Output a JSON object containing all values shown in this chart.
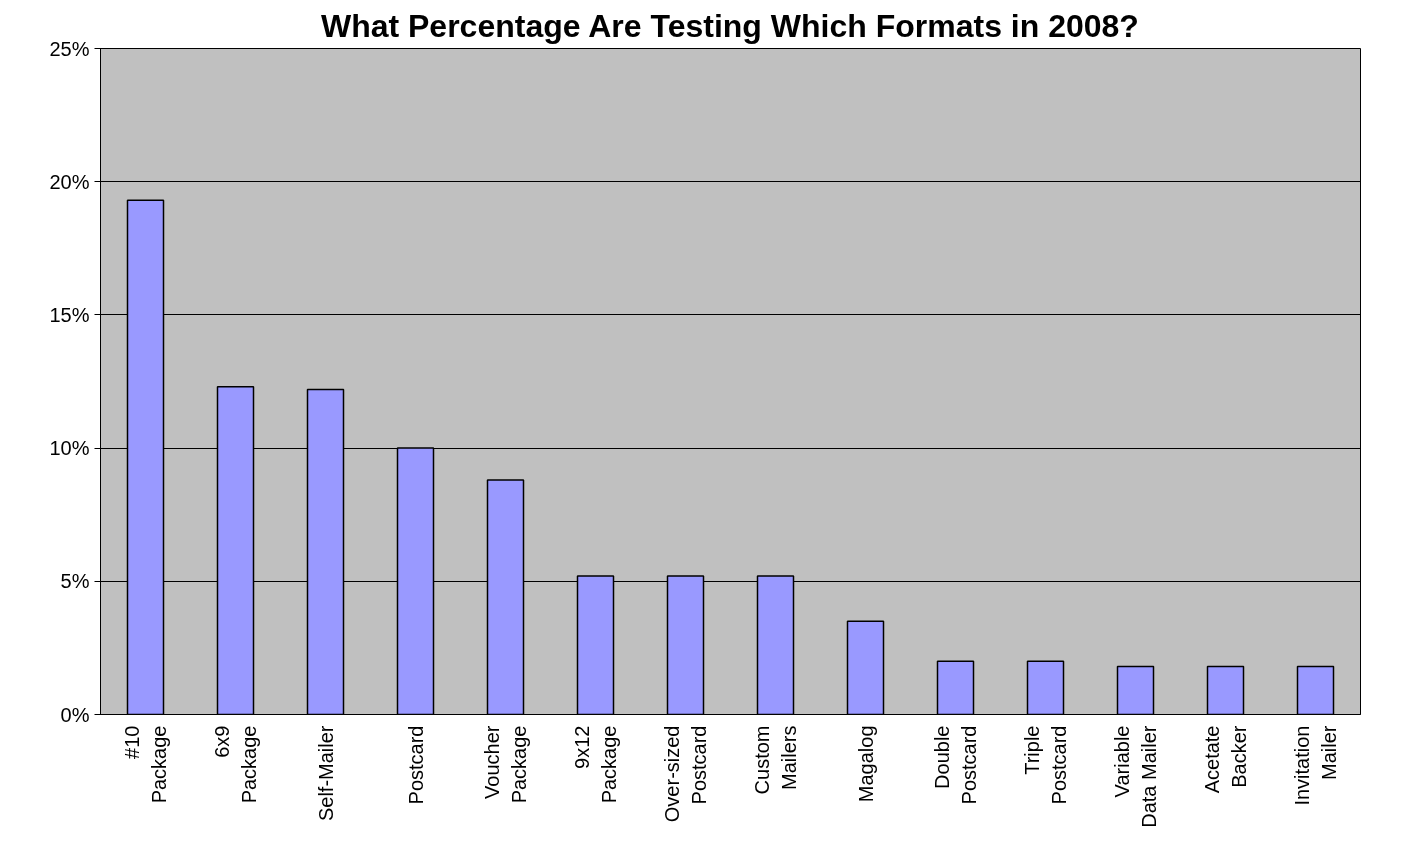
{
  "chart_data": {
    "type": "bar",
    "title": "What Percentage Are Testing Which Formats in 2008?",
    "categories": [
      "#10\nPackage",
      "6x9\nPackage",
      "Self-Mailer",
      "Postcard",
      "Voucher\nPackage",
      "9x12\nPackage",
      "Over-sized\nPostcard",
      "Custom\nMailers",
      "Magalog",
      "Double\nPostcard",
      "Triple\nPostcard",
      "Variable\nData Mailer",
      "Acetate\nBacker",
      "Invitation\nMailer"
    ],
    "values": [
      19.3,
      12.3,
      12.2,
      10.0,
      8.8,
      5.2,
      5.2,
      5.2,
      3.5,
      2.0,
      2.0,
      1.8,
      1.8,
      1.8
    ],
    "color": "#9999ff",
    "ylim": [
      0,
      25
    ],
    "yticks": [
      {
        "value": 0,
        "label": "0%"
      },
      {
        "value": 5,
        "label": "5%"
      },
      {
        "value": 10,
        "label": "10%"
      },
      {
        "value": 15,
        "label": "15%"
      },
      {
        "value": 20,
        "label": "20%"
      },
      {
        "value": 25,
        "label": "25%"
      }
    ],
    "grid": "y"
  }
}
